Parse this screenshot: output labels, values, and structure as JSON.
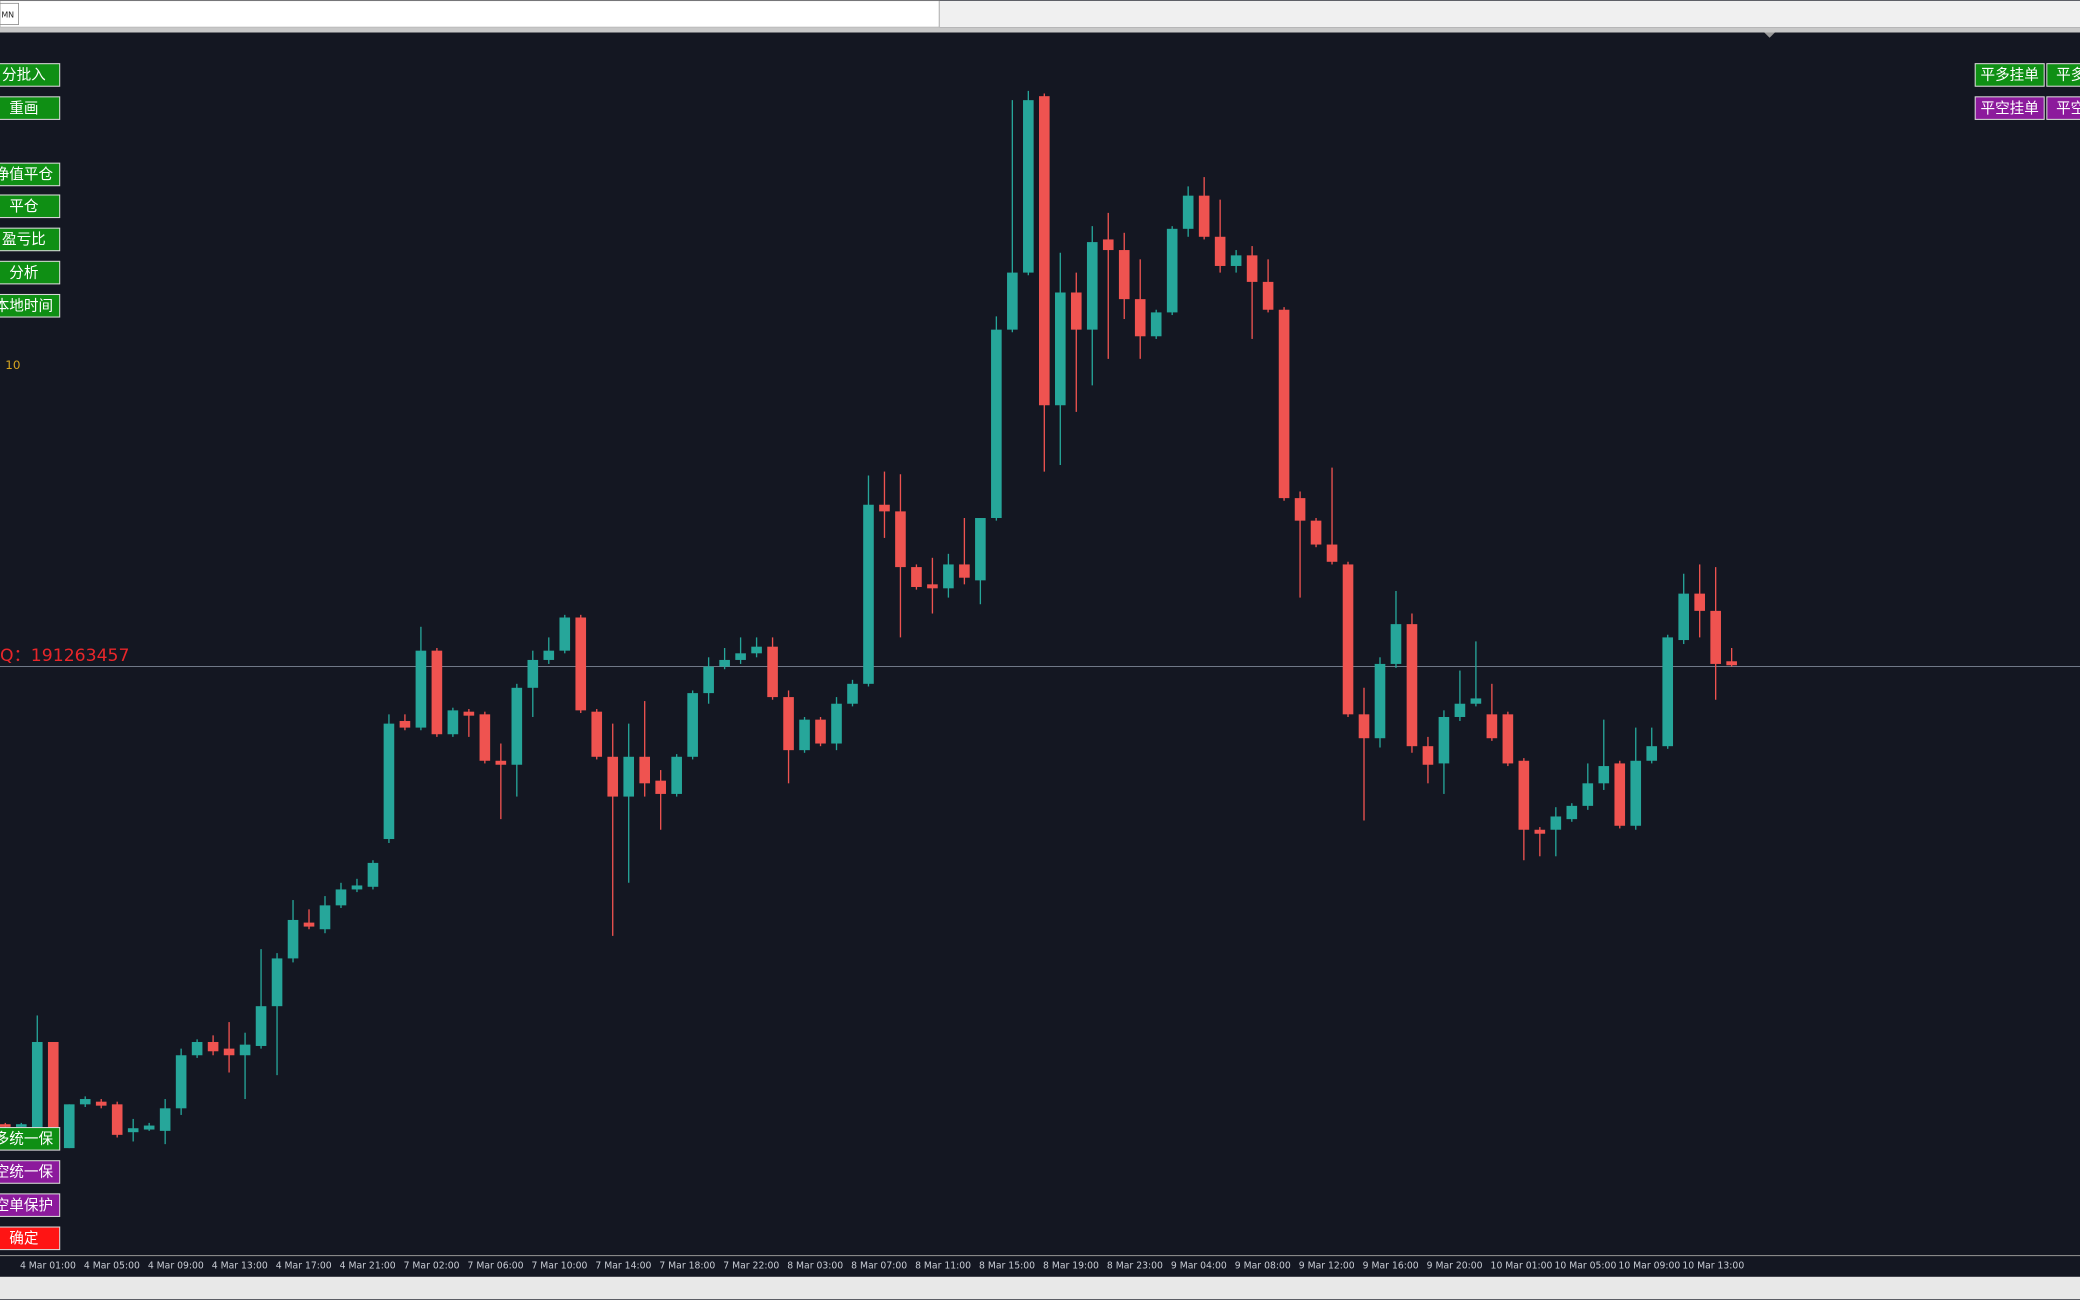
{
  "top_bar": {
    "tab": "MN"
  },
  "chart_data": {
    "type": "candlestick",
    "up_color": "#26a69a",
    "down_color": "#ef5350",
    "ylim": [
      35,
      955
    ],
    "current_price": 478,
    "categories": [
      null,
      "4 Mar 01:00",
      null,
      null,
      null,
      "4 Mar 05:00",
      null,
      null,
      null,
      "4 Mar 09:00",
      null,
      null,
      null,
      "4 Mar 13:00",
      null,
      null,
      null,
      "4 Mar 17:00",
      null,
      null,
      null,
      "4 Mar 21:00",
      null,
      null,
      null,
      "7 Mar 02:00",
      null,
      null,
      null,
      "7 Mar 06:00",
      null,
      null,
      null,
      "7 Mar 10:00",
      null,
      null,
      null,
      "7 Mar 14:00",
      null,
      null,
      null,
      "7 Mar 18:00",
      null,
      null,
      null,
      "7 Mar 22:00",
      null,
      null,
      null,
      "8 Mar 03:00",
      null,
      null,
      null,
      "8 Mar 07:00",
      null,
      null,
      null,
      "8 Mar 11:00",
      null,
      null,
      null,
      "8 Mar 15:00",
      null,
      null,
      null,
      "8 Mar 19:00",
      null,
      null,
      null,
      "8 Mar 23:00",
      null,
      null,
      null,
      "9 Mar 04:00",
      null,
      null,
      null,
      "9 Mar 08:00",
      null,
      null,
      null,
      "9 Mar 12:00",
      null,
      null,
      null,
      "9 Mar 16:00",
      null,
      null,
      null,
      "9 Mar 20:00",
      null,
      null,
      null,
      "10 Mar 01:00",
      null,
      null,
      null,
      "10 Mar 05:00",
      null,
      null,
      null,
      "10 Mar 09:00",
      null,
      null,
      null,
      "10 Mar 13:00",
      null,
      null,
      null
    ],
    "open": [
      133,
      131,
      130,
      195,
      115,
      148,
      150,
      148,
      127,
      129,
      128,
      145,
      185,
      195,
      190,
      185,
      192,
      222,
      258,
      285,
      280,
      298,
      310,
      312,
      348,
      437,
      432,
      490,
      427,
      444,
      442,
      407,
      404,
      462,
      483,
      490,
      515,
      444,
      410,
      380,
      410,
      392,
      382,
      410,
      458,
      478,
      483,
      488,
      493,
      455,
      415,
      438,
      420,
      450,
      465,
      600,
      595,
      553,
      540,
      537,
      555,
      543,
      590,
      732,
      775,
      908,
      675,
      760,
      732,
      800,
      792,
      755,
      727,
      745,
      808,
      833,
      802,
      780,
      788,
      768,
      747,
      605,
      588,
      570,
      555,
      442,
      424,
      480,
      510,
      418,
      405,
      440,
      450,
      442,
      442,
      407,
      355,
      355,
      363,
      373,
      390,
      405,
      358,
      407,
      418,
      498,
      533,
      520,
      482
    ],
    "high": [
      134,
      134,
      215,
      195,
      148,
      154,
      152,
      150,
      137,
      134,
      152,
      190,
      197,
      200,
      210,
      202,
      265,
      262,
      302,
      295,
      305,
      315,
      318,
      332,
      442,
      442,
      508,
      492,
      447,
      446,
      444,
      420,
      465,
      490,
      500,
      517,
      517,
      446,
      435,
      435,
      452,
      400,
      412,
      460,
      485,
      492,
      500,
      500,
      500,
      460,
      440,
      440,
      455,
      468,
      622,
      625,
      623,
      555,
      560,
      563,
      590,
      590,
      742,
      905,
      912,
      910,
      790,
      775,
      810,
      820,
      805,
      785,
      747,
      810,
      840,
      847,
      830,
      792,
      795,
      785,
      749,
      610,
      590,
      628,
      557,
      462,
      485,
      535,
      518,
      425,
      445,
      475,
      497,
      465,
      444,
      409,
      357,
      372,
      375,
      405,
      438,
      407,
      432,
      432,
      502,
      548,
      555,
      553,
      492
    ],
    "low": [
      130,
      130,
      130,
      130,
      115,
      146,
      145,
      123,
      120,
      128,
      118,
      140,
      183,
      185,
      172,
      152,
      190,
      170,
      255,
      280,
      277,
      296,
      308,
      310,
      345,
      430,
      430,
      425,
      425,
      425,
      405,
      363,
      380,
      440,
      480,
      488,
      443,
      408,
      275,
      315,
      380,
      355,
      380,
      408,
      450,
      476,
      480,
      485,
      453,
      390,
      413,
      418,
      415,
      448,
      463,
      575,
      500,
      536,
      518,
      530,
      540,
      525,
      588,
      730,
      773,
      625,
      630,
      670,
      690,
      710,
      740,
      710,
      725,
      743,
      802,
      800,
      775,
      775,
      725,
      745,
      603,
      530,
      568,
      555,
      440,
      362,
      417,
      477,
      413,
      390,
      382,
      437,
      448,
      422,
      403,
      332,
      335,
      335,
      361,
      370,
      385,
      356,
      355,
      405,
      416,
      495,
      500,
      453,
      478
    ],
    "close": [
      131,
      133,
      195,
      130,
      148,
      152,
      147,
      125,
      130,
      132,
      145,
      185,
      195,
      188,
      185,
      193,
      222,
      258,
      287,
      282,
      298,
      310,
      313,
      330,
      435,
      432,
      490,
      427,
      445,
      441,
      407,
      404,
      462,
      483,
      490,
      515,
      445,
      410,
      380,
      410,
      390,
      382,
      410,
      458,
      478,
      483,
      488,
      493,
      455,
      415,
      438,
      420,
      450,
      465,
      600,
      595,
      553,
      538,
      537,
      555,
      545,
      590,
      732,
      775,
      905,
      675,
      760,
      732,
      798,
      792,
      755,
      727,
      745,
      808,
      833,
      802,
      780,
      788,
      768,
      747,
      605,
      588,
      570,
      557,
      442,
      424,
      480,
      510,
      418,
      404,
      440,
      450,
      454,
      424,
      405,
      355,
      352,
      365,
      373,
      390,
      403,
      358,
      407,
      418,
      500,
      533,
      520,
      480,
      479
    ]
  },
  "buttons": {
    "left_top": [
      "分批入",
      "重画",
      "净值平仓",
      "平仓",
      "盈亏比",
      "分析",
      "本地时间"
    ],
    "left_bottom": [
      "多统一保",
      "空统一保",
      "空单保护",
      "确定"
    ],
    "right": [
      "平多挂单",
      "平多",
      "平空挂单",
      "平空"
    ]
  },
  "annotations": {
    "contact": "Q：191263457",
    "marker": 10
  }
}
